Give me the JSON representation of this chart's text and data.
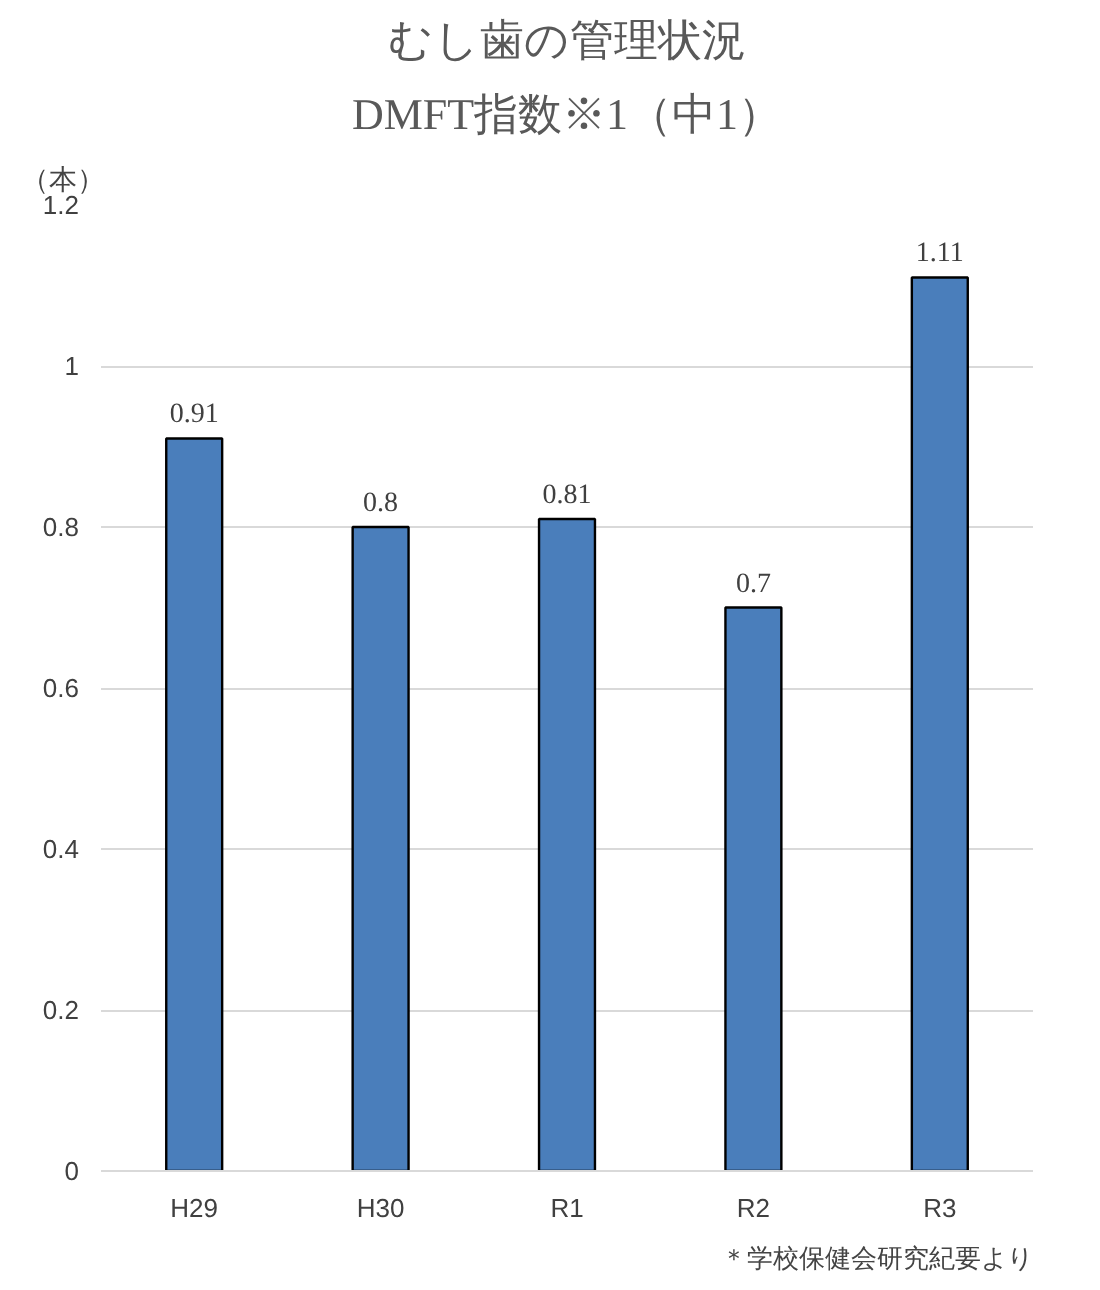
{
  "chart_data": {
    "type": "bar",
    "title": "むし歯の管理状況",
    "subtitle": "DMFT指数※1（中1）",
    "ylabel": "（本）",
    "categories": [
      "H29",
      "H30",
      "R1",
      "R2",
      "R3"
    ],
    "values": [
      0.91,
      0.8,
      0.81,
      0.7,
      1.11
    ],
    "color": "#4a7ebb",
    "data_labels": true,
    "ylim": [
      0,
      1.2
    ],
    "yticks": [
      0,
      0.2,
      0.4,
      0.6,
      0.8,
      1,
      1.2
    ],
    "grid": "y",
    "annotations": [
      "＊学校保健会研究紀要より"
    ]
  }
}
